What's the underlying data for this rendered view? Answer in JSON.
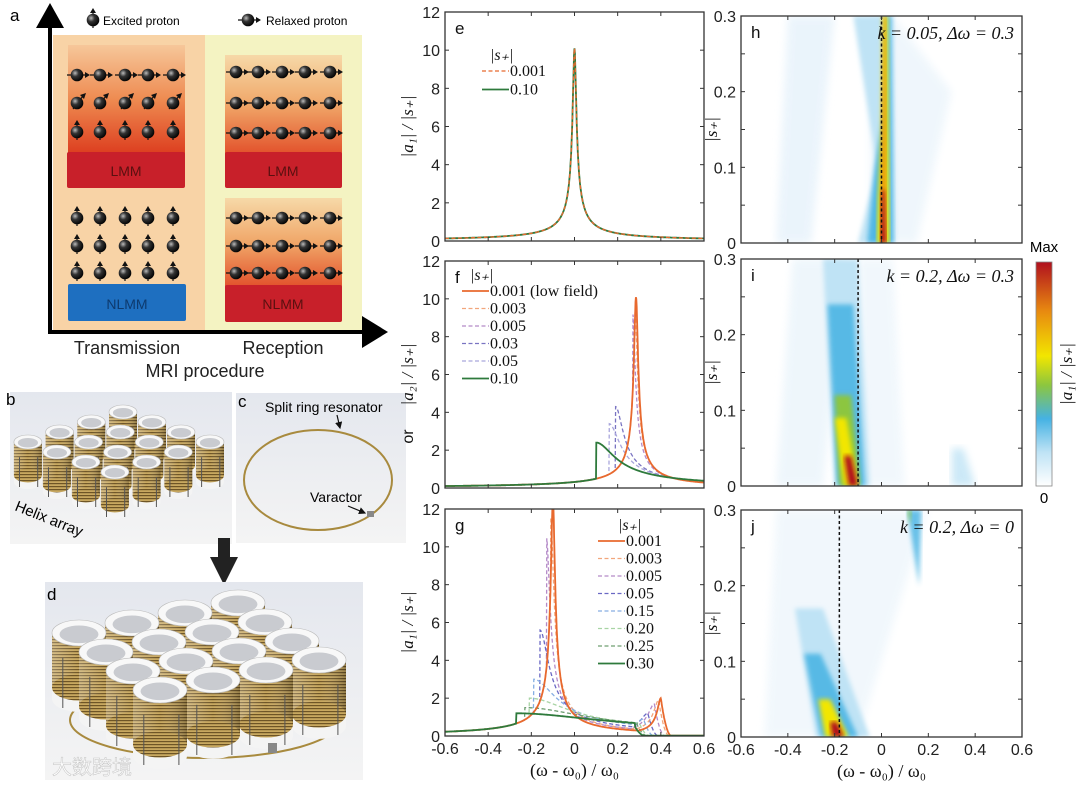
{
  "panel_a": {
    "label": "a",
    "legend_excited": "Excited proton",
    "legend_relaxed": "Relaxed proton",
    "box_lmm": "LMM",
    "box_nlmm": "NLMM",
    "col_transmission": "Transmission",
    "col_reception": "Reception",
    "xlabel": "MRI procedure",
    "colors": {
      "lmm": "#c8202a",
      "nlmm_transmission": "#1e6fc0",
      "nlmm_reception": "#c8202a",
      "transmission_bg": "#f8d3a6",
      "reception_bg": "#f4f3c2"
    }
  },
  "panel_b": {
    "label": "b",
    "caption": "Helix array"
  },
  "panel_c": {
    "label": "c",
    "caption_ring": "Split ring resonator",
    "caption_varactor": "Varactor"
  },
  "panel_d": {
    "label": "d"
  },
  "watermark": "大数跨境",
  "chart_data": [
    {
      "id": "e",
      "type": "line",
      "label": "e",
      "xlabel": "",
      "ylabel": "|a₁| / |s₊|",
      "xlim": [
        -0.6,
        0.6
      ],
      "ylim": [
        0,
        12
      ],
      "xticks": [
        -0.6,
        -0.4,
        -0.2,
        0,
        0.2,
        0.4,
        0.6
      ],
      "yticks": [
        0,
        2,
        4,
        6,
        8,
        10,
        12
      ],
      "legend_title": "|s₊|",
      "series": [
        {
          "name": "0.001",
          "color": "#e8692e",
          "dash": true,
          "peak_x": 0,
          "peak_y": 10.1
        },
        {
          "name": "0.10",
          "color": "#2e7a3c",
          "dash": false,
          "peak_x": 0,
          "peak_y": 10.1
        }
      ]
    },
    {
      "id": "f",
      "type": "line",
      "label": "f",
      "xlabel": "",
      "ylabel": "|a₂| / |s₊|",
      "ylabel_prefix": "or",
      "xlim": [
        -0.6,
        0.6
      ],
      "ylim": [
        0,
        12
      ],
      "xticks": [
        -0.6,
        -0.4,
        -0.2,
        0,
        0.2,
        0.4,
        0.6
      ],
      "yticks": [
        0,
        2,
        4,
        6,
        8,
        10,
        12
      ],
      "legend_title": "|s₊|",
      "series": [
        {
          "name": "0.001 (low field)",
          "color": "#e8692e",
          "dash": false,
          "peak_x": 0.285,
          "peak_y": 10.1
        },
        {
          "name": "0.003",
          "color": "#f2a67c",
          "dash": true,
          "peak_x": 0.28,
          "peak_y": 9.6
        },
        {
          "name": "0.005",
          "color": "#b48ac8",
          "dash": true,
          "peak_x": 0.27,
          "peak_y": 9.2
        },
        {
          "name": "0.03",
          "color": "#7a74c2",
          "dash": true,
          "peak_x": 0.19,
          "peak_y": 4.3
        },
        {
          "name": "0.05",
          "color": "#a9a6dc",
          "dash": true,
          "peak_x": 0.16,
          "peak_y": 3.4
        },
        {
          "name": "0.10",
          "color": "#2e7a3c",
          "dash": false,
          "peak_x": 0.1,
          "peak_y": 2.4
        }
      ]
    },
    {
      "id": "g",
      "type": "line",
      "label": "g",
      "xlabel": "(ω - ω₀) / ω₀",
      "ylabel": "|a₁| / |s₊|",
      "xlim": [
        -0.6,
        0.6
      ],
      "ylim": [
        0,
        12
      ],
      "xticks": [
        -0.6,
        -0.4,
        -0.2,
        0,
        0.2,
        0.4,
        0.6
      ],
      "yticks": [
        0,
        2,
        4,
        6,
        8,
        10,
        12
      ],
      "legend_title": "|s₊|",
      "series": [
        {
          "name": "0.001",
          "color": "#e8692e",
          "dash": false,
          "peak_x": -0.1,
          "peak_y": 12.5,
          "second_peak_x": 0.4,
          "second_peak_y": 2.0
        },
        {
          "name": "0.003",
          "color": "#f2a67c",
          "dash": true,
          "peak_x": -0.11,
          "peak_y": 11.5,
          "second_peak_x": 0.39,
          "second_peak_y": 1.9
        },
        {
          "name": "0.005",
          "color": "#b48ac8",
          "dash": true,
          "peak_x": -0.13,
          "peak_y": 10.5,
          "second_peak_x": 0.37,
          "second_peak_y": 1.7
        },
        {
          "name": "0.05",
          "color": "#6a68c4",
          "dash": true,
          "peak_x": -0.16,
          "peak_y": 5.6,
          "second_peak_x": 0.34,
          "second_peak_y": 1.2
        },
        {
          "name": "0.15",
          "color": "#86aee2",
          "dash": true,
          "peak_x": -0.19,
          "peak_y": 3.0,
          "second_peak_x": 0.32,
          "second_peak_y": 0.9
        },
        {
          "name": "0.20",
          "color": "#a8d4a4",
          "dash": true,
          "peak_x": -0.21,
          "peak_y": 2.0,
          "second_peak_x": 0.3,
          "second_peak_y": 0.7
        },
        {
          "name": "0.25",
          "color": "#6f9f72",
          "dash": true,
          "peak_x": -0.23,
          "peak_y": 1.5,
          "second_peak_x": 0.29,
          "second_peak_y": 0.6
        },
        {
          "name": "0.30",
          "color": "#2e7a3c",
          "dash": false,
          "peak_x": -0.27,
          "peak_y": 1.2,
          "second_peak_x": 0.28,
          "second_peak_y": 0.5
        }
      ]
    },
    {
      "id": "h",
      "type": "heatmap",
      "label": "h",
      "annotation": "k = 0.05, Δω = 0.3",
      "xlabel": "",
      "ylabel": "|s₊|",
      "xlim": [
        -0.6,
        0.6
      ],
      "ylim": [
        0,
        0.3
      ],
      "yticks": [
        0,
        0.1,
        0.2,
        0.3
      ],
      "dashed_line_x": 0,
      "max_location": [
        0,
        0.02
      ]
    },
    {
      "id": "i",
      "type": "heatmap",
      "label": "i",
      "annotation": "k = 0.2, Δω = 0.3",
      "xlabel": "",
      "ylabel": "|s₊|",
      "xlim": [
        -0.6,
        0.6
      ],
      "ylim": [
        0,
        0.3
      ],
      "yticks": [
        0,
        0.1,
        0.2,
        0.3
      ],
      "dashed_line_x": -0.1,
      "max_location": [
        -0.12,
        0.01
      ]
    },
    {
      "id": "j",
      "type": "heatmap",
      "label": "j",
      "annotation": "k = 0.2, Δω = 0",
      "xlabel": "(ω - ω₀) / ω₀",
      "ylabel": "|s₊|",
      "xlim": [
        -0.6,
        0.6
      ],
      "ylim": [
        0,
        0.3
      ],
      "xticks": [
        -0.6,
        -0.4,
        -0.2,
        0,
        0.2,
        0.4,
        0.6
      ],
      "yticks": [
        0,
        0.1,
        0.2,
        0.3
      ],
      "dashed_line_x": -0.18,
      "max_location": [
        -0.19,
        0.01
      ]
    }
  ],
  "colorbar": {
    "max_label": "Max",
    "min_label": "0",
    "label": "|a₁| / |s₊|",
    "colors": [
      "#ffffff",
      "#bfe3f5",
      "#45b2e3",
      "#8cc63f",
      "#f2e600",
      "#e88a10",
      "#b0101e"
    ]
  }
}
